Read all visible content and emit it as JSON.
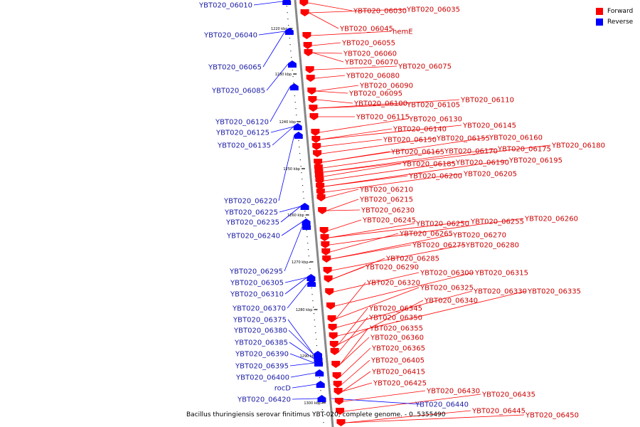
{
  "colors": {
    "forward": "#ff0000",
    "reverse": "#0000ff",
    "axis": "#888888",
    "label_forward": "#cc0000",
    "label_reverse": "#1a1aa6"
  },
  "legend": {
    "forward_label": "Forward",
    "reverse_label": "Reverse"
  },
  "caption": "Bacillus thuringiensis serovar finitimus YBT-020, complete genome. - 0..5355490",
  "axis_ticks": [
    "1220 kbp",
    "1230 kbp",
    "1240 kbp",
    "1250 kbp",
    "1260 kbp",
    "1270 kbp",
    "1280 kbp",
    "1290 kbp",
    "1300 kbp"
  ],
  "forward_genes": [
    "YBT020_06030",
    "YBT020_06035",
    "YBT020_06045",
    "hemE",
    "YBT020_06055",
    "YBT020_06060",
    "YBT020_06070",
    "YBT020_06075",
    "YBT020_06080",
    "YBT020_06090",
    "YBT020_06095",
    "YBT020_06100",
    "YBT020_06105",
    "YBT020_06110",
    "YBT020_06115",
    "YBT020_06130",
    "YBT020_06140",
    "YBT020_06145",
    "YBT020_06150",
    "YBT020_06155",
    "YBT020_06160",
    "YBT020_06165",
    "YBT020_06170",
    "YBT020_06175",
    "YBT020_06180",
    "YBT020_06185",
    "YBT020_06190",
    "YBT020_06195",
    "YBT020_06200",
    "YBT020_06205",
    "YBT020_06210",
    "YBT020_06215",
    "YBT020_06230",
    "YBT020_06245",
    "YBT020_06250",
    "YBT020_06255",
    "YBT020_06260",
    "YBT020_06265",
    "YBT020_06270",
    "YBT020_06275",
    "YBT020_06280",
    "YBT020_06285",
    "YBT020_06290",
    "YBT020_06300",
    "YBT020_06315",
    "YBT020_06320",
    "YBT020_06325",
    "YBT020_06330",
    "YBT020_06335",
    "YBT020_06340",
    "YBT020_06345",
    "YBT020_06350",
    "YBT020_06355",
    "YBT020_06360",
    "YBT020_06365",
    "YBT020_06405",
    "YBT020_06415",
    "YBT020_06425",
    "YBT020_06430",
    "YBT020_06435",
    "YBT020_06445",
    "YBT020_06450"
  ],
  "reverse_genes": [
    "YBT020_06010",
    "YBT020_06040",
    "YBT020_06065",
    "YBT020_06085",
    "YBT020_06120",
    "YBT020_06125",
    "YBT020_06135",
    "YBT020_06220",
    "YBT020_06225",
    "YBT020_06235",
    "YBT020_06240",
    "YBT020_06295",
    "YBT020_06305",
    "YBT020_06310",
    "YBT020_06370",
    "YBT020_06375",
    "YBT020_06380",
    "YBT020_06385",
    "YBT020_06390",
    "YBT020_06395",
    "YBT020_06400",
    "rocD",
    "YBT020_06420",
    "YBT020_06440"
  ]
}
